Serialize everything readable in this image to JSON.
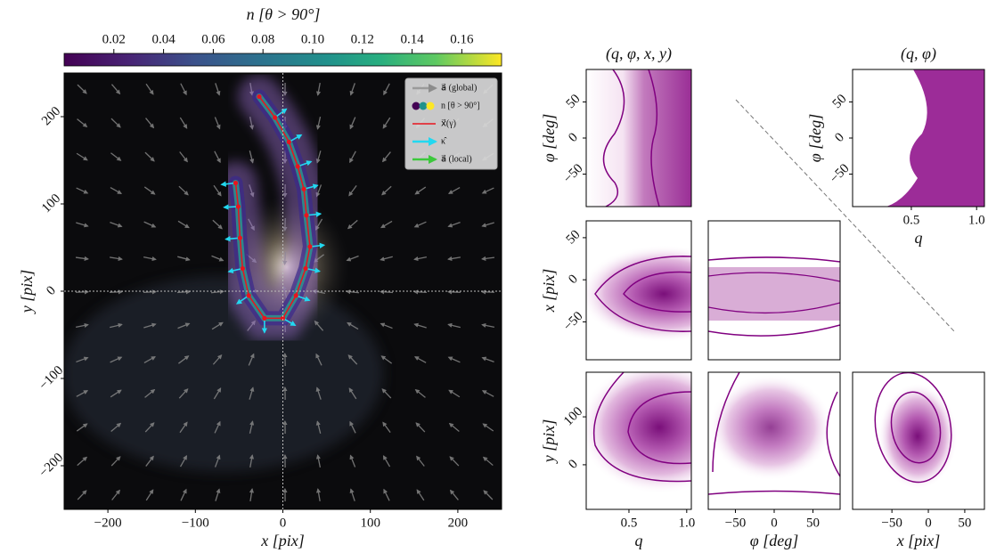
{
  "chart_data": [
    {
      "type": "line",
      "xlabel": "x [pix]",
      "ylabel": "y [pix]",
      "xlim": [
        -250,
        250
      ],
      "ylim": [
        -250,
        250
      ],
      "xticks": [
        {
          "value": -200,
          "label": "−200"
        },
        {
          "value": -100,
          "label": "−100"
        },
        0,
        100,
        200
      ],
      "yticks": [
        {
          "value": -200,
          "label": "−200"
        },
        {
          "value": -100,
          "label": "−100"
        },
        0,
        100,
        200
      ],
      "series": [
        {
          "name": "x⃗(γ)",
          "color": "#e8141e",
          "x": [
            -54,
            -51,
            -49,
            -46,
            -39,
            -21,
            0,
            15,
            26,
            31,
            27,
            24,
            17,
            7,
            -9,
            -27
          ],
          "values": [
            124,
            97,
            61,
            26,
            -5,
            -31,
            -31,
            -5,
            26,
            51,
            87,
            117,
            143,
            171,
            199,
            223
          ]
        }
      ],
      "legend": [
        "a⃗ (global)",
        "n [θ > 90°]",
        "x⃗(γ)",
        "κ̂",
        "a⃗ (local)"
      ],
      "colorbar": {
        "label": "n [θ > 90°]",
        "lim": [
          0.0,
          0.176
        ],
        "ticks": [
          0.02,
          0.04,
          0.06,
          0.08,
          {
            "value": 0.1,
            "label": "0.10"
          },
          0.12,
          0.14,
          0.16
        ]
      }
    },
    {
      "type": "heatmap",
      "title": "(q, φ, x, y)",
      "ylabel": "φ [deg]",
      "xlim": [
        0.13,
        1.04
      ],
      "ylim": [
        -95,
        95
      ],
      "yticks": [
        {
          "value": -50,
          "label": "−50"
        },
        0,
        50
      ]
    },
    {
      "type": "heatmap",
      "title": "(q, φ)",
      "xlabel": "q",
      "ylabel": "φ [deg]",
      "xlim": [
        0.05,
        1.06
      ],
      "ylim": [
        -95,
        95
      ],
      "xticks": [
        0.5,
        {
          "value": 1.0,
          "label": "1.0"
        }
      ],
      "yticks": [
        {
          "value": -50,
          "label": "−50"
        },
        0,
        50
      ]
    },
    {
      "type": "heatmap",
      "ylabel": "x [pix]",
      "xlim": [
        0.13,
        1.04
      ],
      "ylim": [
        -95,
        70
      ],
      "yticks": [
        {
          "value": -50,
          "label": "−50"
        },
        0,
        50
      ]
    },
    {
      "type": "heatmap",
      "xlim": [
        -85,
        85
      ],
      "ylim": [
        -95,
        70
      ]
    },
    {
      "type": "heatmap",
      "xlabel": "q",
      "ylabel": "y [pix]",
      "xlim": [
        0.13,
        1.04
      ],
      "ylim": [
        -93,
        193
      ],
      "xticks": [
        0.5,
        {
          "value": 1.0,
          "label": "1.0"
        }
      ],
      "yticks": [
        0,
        100
      ]
    },
    {
      "type": "heatmap",
      "xlabel": "φ [deg]",
      "xlim": [
        -85,
        85
      ],
      "ylim": [
        -93,
        193
      ],
      "xticks": [
        {
          "value": -50,
          "label": "−50"
        },
        0,
        50
      ]
    },
    {
      "type": "heatmap",
      "xlabel": "x [pix]",
      "xlim": [
        -104,
        77
      ],
      "ylim": [
        -93,
        193
      ],
      "xticks": [
        {
          "value": -50,
          "label": "−50"
        },
        0,
        50
      ]
    }
  ]
}
